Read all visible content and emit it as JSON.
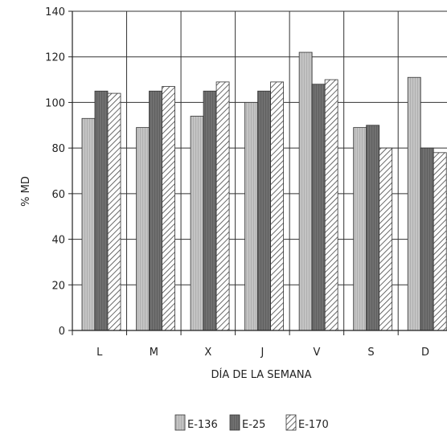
{
  "chart_data": {
    "type": "bar",
    "categories": [
      "L",
      "M",
      "X",
      "J",
      "V",
      "S",
      "D"
    ],
    "series": [
      {
        "name": "E-136",
        "values": [
          93,
          89,
          94,
          100,
          122,
          89,
          111
        ],
        "color": "#b8b8b8",
        "pattern": "light-hatch"
      },
      {
        "name": "E-25",
        "values": [
          105,
          105,
          105,
          105,
          108,
          90,
          80
        ],
        "color": "#6f6f6f",
        "pattern": "dark-solid"
      },
      {
        "name": "E-170",
        "values": [
          104,
          107,
          109,
          109,
          110,
          80,
          78
        ],
        "color": "#ffffff",
        "pattern": "diagonal-hatch"
      }
    ],
    "xlabel": "DÍA DE LA SEMANA",
    "ylabel": "% MD",
    "ylim": [
      0,
      140
    ],
    "yticks": [
      0,
      20,
      40,
      60,
      80,
      100,
      120,
      140
    ],
    "grid": true,
    "legend_position": "bottom"
  }
}
